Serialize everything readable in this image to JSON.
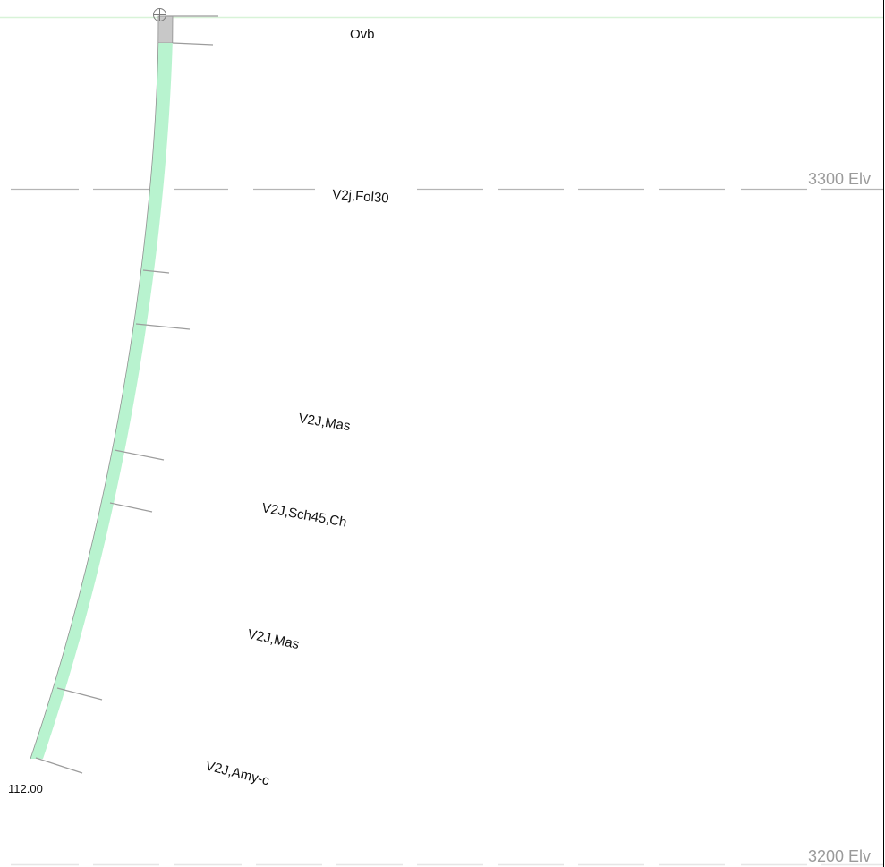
{
  "section": {
    "elevation_lines": [
      {
        "label": "3300 Elv"
      },
      {
        "label": "3200 Elv"
      }
    ],
    "collar_symbol": "circle-crosshair-icon",
    "end_of_hole_depth": "112.00",
    "trace_colors": {
      "casing": "#c8c8c8",
      "rock": "#b8f3cf",
      "outline": "#8f8f8f",
      "ground_line": "#d8f3d8",
      "elevation_line": "#b5b5b5",
      "tick": "#9c9c9c",
      "frame": "#000000"
    },
    "intervals": [
      {
        "code": "Ovb"
      },
      {
        "code": "V2j,Fol30"
      },
      {
        "code": "V2J,Mas"
      },
      {
        "code": "V2J,Sch45,Ch"
      },
      {
        "code": "V2J,Mas"
      },
      {
        "code": "V2J,Amy-c"
      }
    ]
  }
}
